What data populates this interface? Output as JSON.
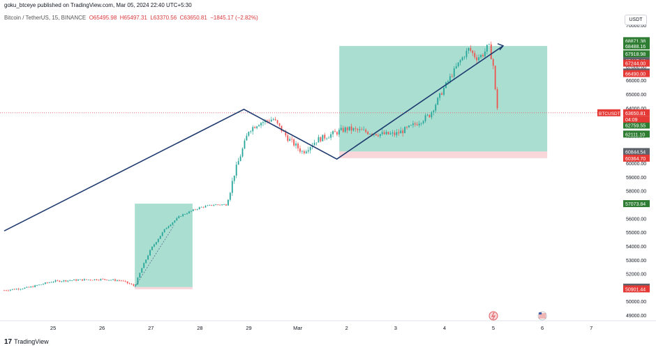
{
  "header": {
    "published": "goku_btceye published on TradingView.com, Mar 05, 2024 22:40 UTC+5:30",
    "symbol": "Bitcoin / TetherUS, 15, BINANCE",
    "o": "O65495.98",
    "h": "H65497.31",
    "l": "L63370.56",
    "c": "C63650.81",
    "change": "−1845.17 (−2.82%)"
  },
  "currency_button": "USDT",
  "footer": {
    "brand_mark": "17",
    "brand": "TradingView"
  },
  "colors": {
    "up": "#26a69a",
    "down": "#ef5350",
    "trend_line": "#1e3a6e",
    "target_zone": "#a4dccd",
    "stop_zone": "#f9d6da",
    "label_green": "#2e7d32",
    "label_red": "#e53935",
    "label_dark": "#5d6169"
  },
  "chart_data": {
    "type": "candlestick",
    "symbol": "BTCUSDT",
    "interval": "15",
    "x_ticks": [
      "25",
      "26",
      "27",
      "28",
      "29",
      "Mar",
      "2",
      "3",
      "4",
      "5",
      "6",
      "7"
    ],
    "y_ticks": [
      49000,
      50000,
      51000,
      52000,
      53000,
      54000,
      55000,
      56000,
      57000,
      58000,
      59000,
      60000,
      61000,
      62000,
      63000,
      64000,
      65000,
      66000,
      67000,
      68000,
      69000,
      70000
    ],
    "y_range": [
      48800,
      70200
    ],
    "x_range": [
      24.0,
      7.85
    ],
    "price_path": [
      [
        24.0,
        50800
      ],
      [
        24.5,
        51000
      ],
      [
        25.0,
        51450
      ],
      [
        25.5,
        51550
      ],
      [
        26.0,
        51600
      ],
      [
        26.4,
        51500
      ],
      [
        26.67,
        51100
      ],
      [
        26.8,
        52300
      ],
      [
        27.0,
        53800
      ],
      [
        27.3,
        55300
      ],
      [
        27.6,
        56200
      ],
      [
        28.0,
        56800
      ],
      [
        28.3,
        57000
      ],
      [
        28.55,
        57000
      ],
      [
        28.7,
        59200
      ],
      [
        28.9,
        61300
      ],
      [
        29.0,
        62400
      ],
      [
        29.2,
        62900
      ],
      [
        29.5,
        63200
      ],
      [
        29.8,
        61800
      ],
      [
        30.1,
        60800
      ],
      [
        30.4,
        61700
      ],
      [
        31.0,
        62500
      ],
      [
        31.7,
        62100
      ],
      [
        32.0,
        62100
      ],
      [
        32.3,
        62600
      ],
      [
        32.7,
        63500
      ],
      [
        33.0,
        65500
      ],
      [
        33.3,
        67300
      ],
      [
        33.5,
        68300
      ],
      [
        33.65,
        67600
      ],
      [
        33.8,
        67900
      ],
      [
        33.9,
        68600
      ],
      [
        34.0,
        67000
      ],
      [
        34.05,
        64700
      ],
      [
        34.1,
        63650
      ]
    ],
    "price_labels": [
      {
        "value": 68871.38,
        "text": "68871.38",
        "kind": "green"
      },
      {
        "value": 68488.16,
        "text": "68488.16",
        "kind": "green"
      },
      {
        "value": 67918.98,
        "text": "67918.98",
        "kind": "green"
      },
      {
        "value": 67417.43,
        "text": "67417.43",
        "kind": "dark"
      },
      {
        "value": 67244.0,
        "text": "67244.00",
        "kind": "red"
      },
      {
        "value": 66603.26,
        "text": "66603.26",
        "kind": "dark"
      },
      {
        "value": 66490.0,
        "text": "66490.00",
        "kind": "red"
      },
      {
        "value": 63650.81,
        "text": "63650.81",
        "kind": "red"
      },
      {
        "value": 62963.46,
        "text": "62963.46",
        "kind": "red"
      },
      {
        "value": 62759.55,
        "text": "62759.55",
        "kind": "green"
      },
      {
        "value": 62111.1,
        "text": "62111.10",
        "kind": "green"
      },
      {
        "value": 60844.54,
        "text": "60844.54",
        "kind": "dark"
      },
      {
        "value": 60364.7,
        "text": "60364.70",
        "kind": "red"
      },
      {
        "value": 57073.84,
        "text": "57073.84",
        "kind": "green"
      },
      {
        "value": 51029.22,
        "text": "51029.22",
        "kind": "dark"
      },
      {
        "value": 50901.44,
        "text": "50901.44",
        "kind": "red"
      }
    ],
    "countdown": "04:09",
    "symbol_tag": "BTCUSDT",
    "current_price": 63650.81,
    "trend_lines": [
      [
        [
          24.0,
          55100
        ],
        [
          28.9,
          63900
        ],
        [
          30.8,
          60300
        ],
        [
          34.2,
          68500
        ]
      ]
    ],
    "projections": [
      {
        "x0": 26.67,
        "x1": 27.85,
        "entry": 51029.22,
        "stop": 50901.44,
        "target": 57073.84
      },
      {
        "x0": 30.85,
        "x1": 35.1,
        "entry": 60844.54,
        "stop": 60364.7,
        "target": 68488.16
      }
    ],
    "time_axis_icons": [
      "lightning-icon",
      "us-flag-icon"
    ]
  }
}
